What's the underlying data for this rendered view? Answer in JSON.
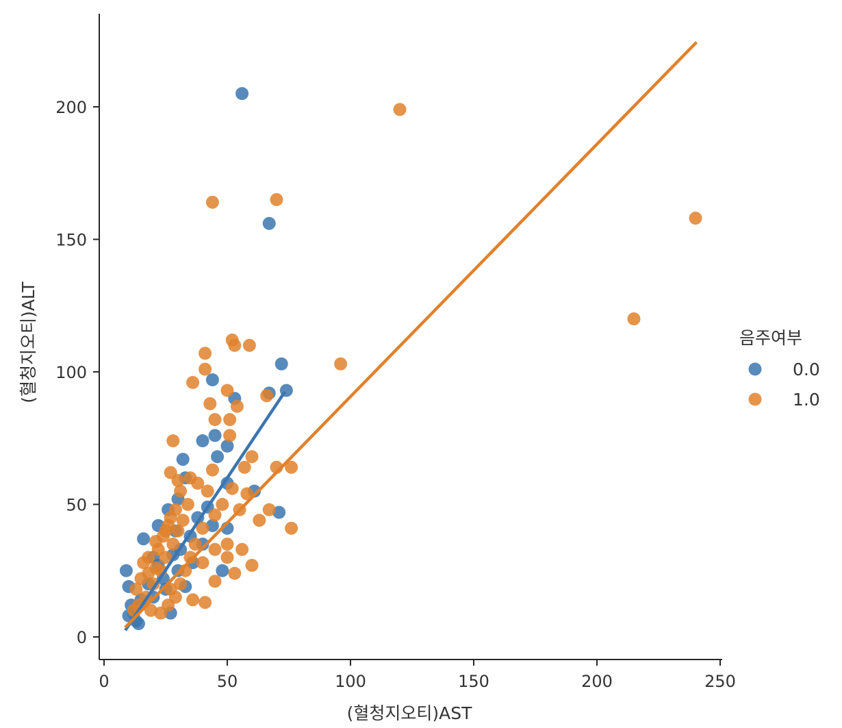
{
  "chart_data": {
    "type": "scatter",
    "xlabel": "(혈청지오티)AST",
    "ylabel": "(혈청지오티)ALT",
    "xlim": [
      -2,
      252
    ],
    "ylim": [
      -8,
      234
    ],
    "xticks": [
      0,
      50,
      100,
      150,
      200,
      250
    ],
    "yticks": [
      0,
      50,
      100,
      150,
      200
    ],
    "grid": false,
    "legend": {
      "title": "음주여부",
      "placement": "right"
    },
    "series": [
      {
        "name": "0.0",
        "color": "#3b75af",
        "regression": {
          "x": [
            9,
            73
          ],
          "y": [
            3,
            92
          ]
        },
        "points": [
          [
            56,
            205
          ],
          [
            67,
            156
          ],
          [
            72,
            103
          ],
          [
            74,
            93
          ],
          [
            67,
            92
          ],
          [
            53,
            90
          ],
          [
            44,
            97
          ],
          [
            40,
            74
          ],
          [
            45,
            76
          ],
          [
            50,
            72
          ],
          [
            46,
            68
          ],
          [
            32,
            67
          ],
          [
            50,
            58
          ],
          [
            61,
            55
          ],
          [
            71,
            47
          ],
          [
            50,
            41
          ],
          [
            48,
            25
          ],
          [
            33,
            60
          ],
          [
            30,
            52
          ],
          [
            26,
            48
          ],
          [
            22,
            42
          ],
          [
            16,
            37
          ],
          [
            9,
            25
          ],
          [
            10,
            19
          ],
          [
            11,
            12
          ],
          [
            12,
            9
          ],
          [
            10,
            8
          ],
          [
            14,
            5
          ],
          [
            13,
            6
          ],
          [
            27,
            9
          ],
          [
            20,
            15
          ],
          [
            24,
            22
          ],
          [
            35,
            38
          ],
          [
            42,
            49
          ],
          [
            38,
            45
          ],
          [
            28,
            31
          ],
          [
            18,
            20
          ],
          [
            15,
            14
          ],
          [
            30,
            25
          ],
          [
            36,
            28
          ],
          [
            40,
            35
          ],
          [
            25,
            18
          ],
          [
            22,
            27
          ],
          [
            33,
            19
          ],
          [
            29,
            40
          ],
          [
            44,
            42
          ],
          [
            20,
            30
          ],
          [
            31,
            33
          ]
        ]
      },
      {
        "name": "1.0",
        "color": "#e1812c",
        "regression": {
          "x": [
            9,
            240
          ],
          "y": [
            4,
            224
          ]
        },
        "points": [
          [
            120,
            199
          ],
          [
            44,
            164
          ],
          [
            70,
            165
          ],
          [
            240,
            158
          ],
          [
            215,
            120
          ],
          [
            52,
            112
          ],
          [
            53,
            110
          ],
          [
            59,
            110
          ],
          [
            41,
            107
          ],
          [
            96,
            103
          ],
          [
            41,
            101
          ],
          [
            36,
            96
          ],
          [
            50,
            93
          ],
          [
            66,
            91
          ],
          [
            43,
            88
          ],
          [
            54,
            87
          ],
          [
            45,
            82
          ],
          [
            51,
            82
          ],
          [
            51,
            76
          ],
          [
            28,
            74
          ],
          [
            60,
            68
          ],
          [
            57,
            64
          ],
          [
            70,
            64
          ],
          [
            76,
            64
          ],
          [
            44,
            63
          ],
          [
            27,
            62
          ],
          [
            35,
            60
          ],
          [
            30,
            59
          ],
          [
            38,
            58
          ],
          [
            52,
            56
          ],
          [
            58,
            54
          ],
          [
            42,
            55
          ],
          [
            48,
            50
          ],
          [
            55,
            48
          ],
          [
            67,
            48
          ],
          [
            63,
            44
          ],
          [
            45,
            46
          ],
          [
            40,
            41
          ],
          [
            76,
            41
          ],
          [
            50,
            35
          ],
          [
            45,
            33
          ],
          [
            56,
            33
          ],
          [
            50,
            30
          ],
          [
            60,
            27
          ],
          [
            53,
            24
          ],
          [
            40,
            28
          ],
          [
            45,
            21
          ],
          [
            41,
            13
          ],
          [
            36,
            14
          ],
          [
            27,
            18
          ],
          [
            21,
            26
          ],
          [
            18,
            30
          ],
          [
            15,
            22
          ],
          [
            14,
            12
          ],
          [
            12,
            10
          ],
          [
            17,
            15
          ],
          [
            20,
            20
          ],
          [
            23,
            25
          ],
          [
            25,
            30
          ],
          [
            28,
            35
          ],
          [
            30,
            40
          ],
          [
            32,
            44
          ],
          [
            24,
            38
          ],
          [
            22,
            33
          ],
          [
            26,
            42
          ],
          [
            19,
            10
          ],
          [
            23,
            9
          ],
          [
            26,
            12
          ],
          [
            29,
            15
          ],
          [
            31,
            20
          ],
          [
            33,
            25
          ],
          [
            35,
            30
          ],
          [
            37,
            35
          ],
          [
            34,
            50
          ],
          [
            31,
            55
          ],
          [
            29,
            48
          ],
          [
            27,
            45
          ],
          [
            25,
            40
          ],
          [
            21,
            36
          ],
          [
            16,
            28
          ],
          [
            13,
            18
          ],
          [
            18,
            24
          ]
        ]
      }
    ]
  }
}
